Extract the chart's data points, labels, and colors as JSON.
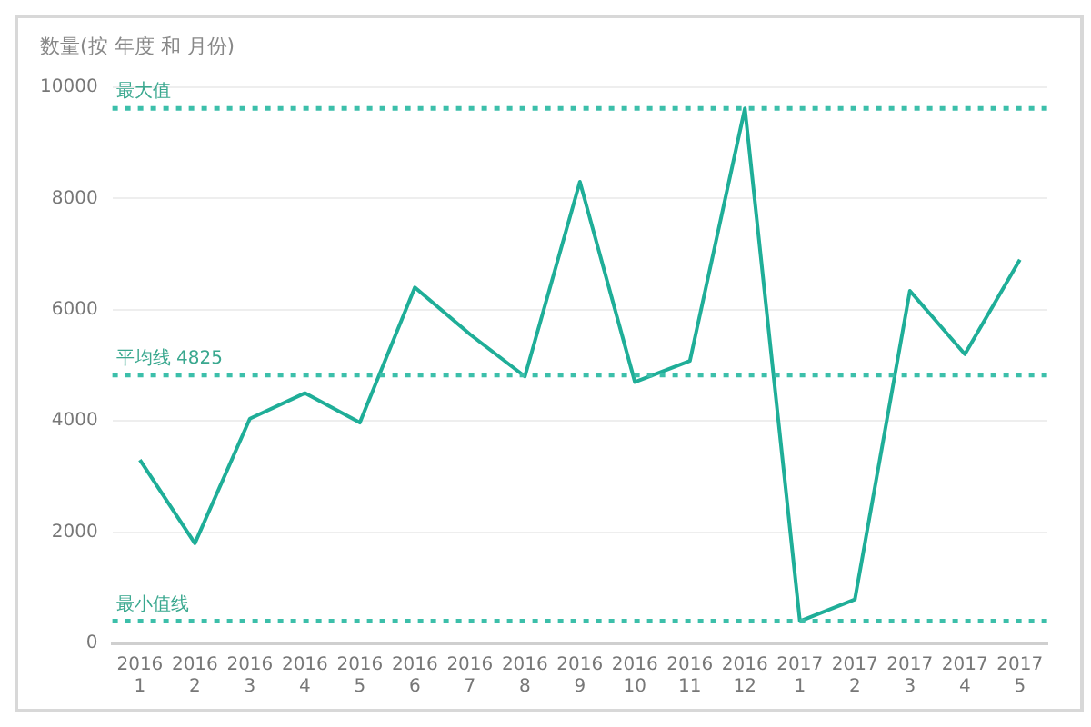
{
  "chart_data": {
    "type": "line",
    "ylabel": "数量(按 年度 和 月份)",
    "categories": [
      "2016\n1",
      "2016\n2",
      "2016\n3",
      "2016\n4",
      "2016\n5",
      "2016\n6",
      "2016\n7",
      "2016\n8",
      "2016\n9",
      "2016\n10",
      "2016\n11",
      "2016\n12",
      "2017\n1",
      "2017\n2",
      "2017\n3",
      "2017\n4",
      "2017\n5"
    ],
    "series": [
      {
        "color": "#1fae98",
        "values": [
          3300,
          1800,
          4040,
          4500,
          3970,
          6400,
          5560,
          4800,
          8300,
          4700,
          5080,
          9620,
          400,
          790,
          6340,
          5200,
          6900
        ]
      }
    ],
    "ylim": [
      0,
      10000
    ],
    "yticks": [
      0,
      2000,
      4000,
      6000,
      8000,
      10000
    ],
    "grid": "y",
    "legend": false,
    "marker": "none",
    "line_style": "solid",
    "ref_lines": [
      {
        "axis": "y",
        "value": 9620,
        "label": "最大值",
        "color": "#3cbfaa",
        "line_style": "dotted"
      },
      {
        "axis": "y",
        "value": 4825,
        "label": "平均线 4825",
        "color": "#3cbfaa",
        "line_style": "dotted"
      },
      {
        "axis": "y",
        "value": 400,
        "label": "最小值线",
        "color": "#3cbfaa",
        "line_style": "dotted"
      }
    ]
  }
}
